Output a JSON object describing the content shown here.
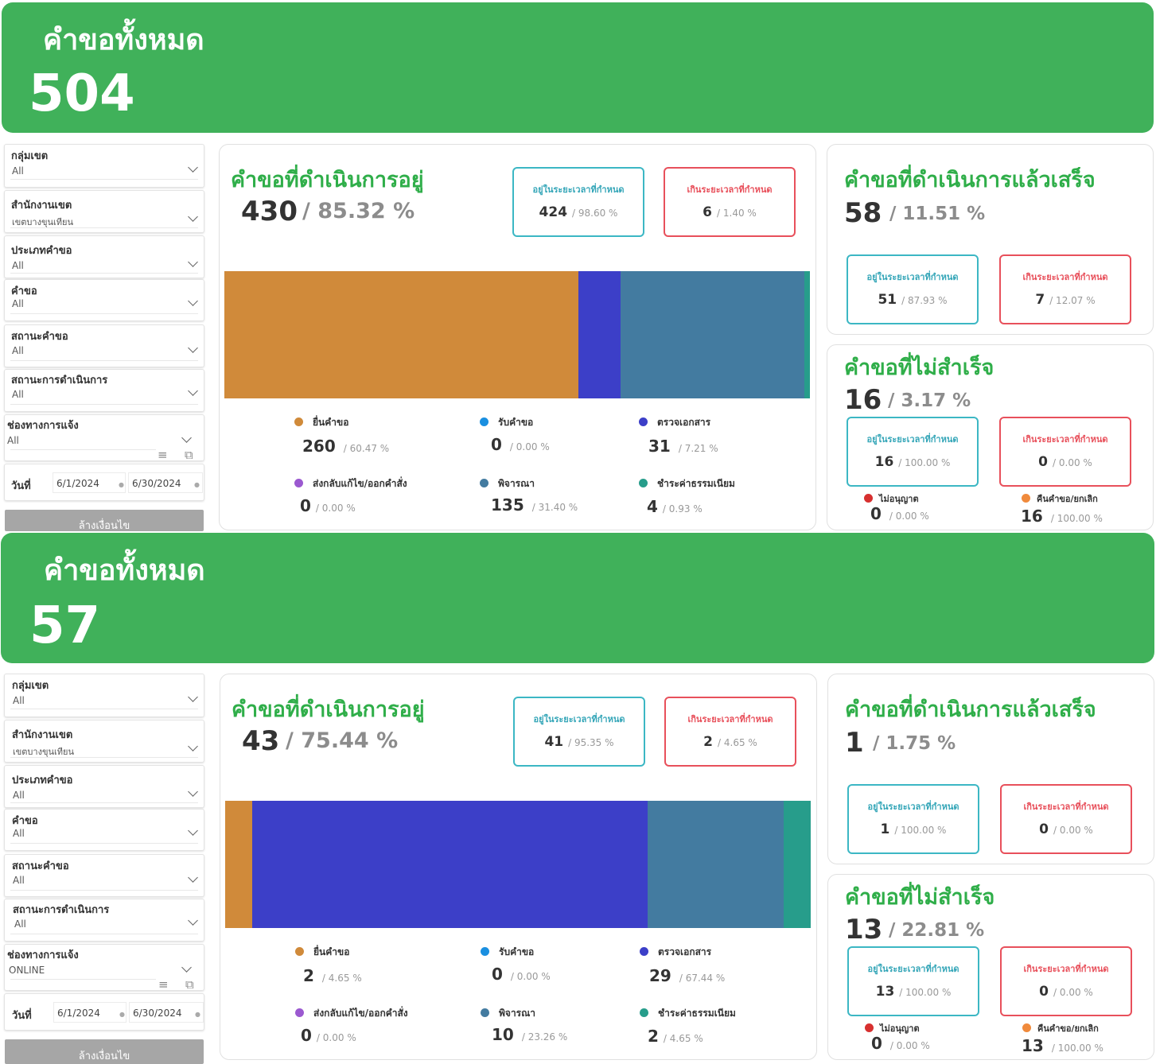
{
  "panels": [
    {
      "banner": {
        "title": "คำขอทั้งหมด",
        "value": "504"
      },
      "filters": [
        {
          "label": "กลุ่มเขต",
          "value": "All"
        },
        {
          "label": "สำนักงานเขต",
          "value": "เขตบางขุนเทียน"
        },
        {
          "label": "ประเภทคำขอ",
          "value": "All"
        },
        {
          "label": "คำขอ",
          "value": "All"
        },
        {
          "label": "สถานะคำขอ",
          "value": "All"
        },
        {
          "label": "สถานะการดำเนินการ",
          "value": "All"
        },
        {
          "label": "ช่องทางการแจ้ง",
          "value": "All"
        }
      ],
      "date": {
        "label": "วันที่",
        "from": "6/1/2024",
        "to": "6/30/2024"
      },
      "clear_label": "ล้างเงื่อนไข",
      "in_progress": {
        "title": "คำขอที่ดำเนินการอยู่",
        "count": "430",
        "pct": "/ 85.32 %",
        "in_time": {
          "title": "อยู่ในระยะเวลาที่กำหนด",
          "count": "424",
          "pct": "/ 98.60 %"
        },
        "over_time": {
          "title": "เกินระยะเวลาที่กำหนด",
          "count": "6",
          "pct": "/ 1.40 %"
        },
        "stack": [
          260,
          0,
          31,
          0,
          135,
          4
        ],
        "legend": [
          {
            "name": "ยื่นคำขอ",
            "count": "260",
            "pct": "/ 60.47 %"
          },
          {
            "name": "รับคำขอ",
            "count": "0",
            "pct": "/ 0.00 %"
          },
          {
            "name": "ตรวจเอกสาร",
            "count": "31",
            "pct": "/ 7.21 %"
          },
          {
            "name": "ส่งกลับแก้ไข/ออกคำสั่ง",
            "count": "0",
            "pct": "/ 0.00 %"
          },
          {
            "name": "พิจารณา",
            "count": "135",
            "pct": "/ 31.40 %"
          },
          {
            "name": "ชำระค่าธรรมเนียม",
            "count": "4",
            "pct": "/ 0.93 %"
          }
        ]
      },
      "completed": {
        "title": "คำขอที่ดำเนินการแล้วเสร็จ",
        "count": "58",
        "pct": "/ 11.51 %",
        "in_time": {
          "title": "อยู่ในระยะเวลาที่กำหนด",
          "count": "51",
          "pct": "/ 87.93 %"
        },
        "over_time": {
          "title": "เกินระยะเวลาที่กำหนด",
          "count": "7",
          "pct": "/ 12.07 %"
        }
      },
      "failed": {
        "title": "คำขอที่ไม่สำเร็จ",
        "count": "16",
        "pct": "/ 3.17 %",
        "in_time": {
          "title": "อยู่ในระยะเวลาที่กำหนด",
          "count": "16",
          "pct": "/ 100.00 %"
        },
        "over_time": {
          "title": "เกินระยะเวลาที่กำหนด",
          "count": "0",
          "pct": "/ 0.00 %"
        },
        "legend": [
          {
            "name": "ไม่อนุญาต",
            "count": "0",
            "pct": "/ 0.00 %"
          },
          {
            "name": "คืนคำขอ/ยกเลิก",
            "count": "16",
            "pct": "/ 100.00 %"
          }
        ]
      }
    },
    {
      "banner": {
        "title": "คำขอทั้งหมด",
        "value": "57"
      },
      "filters": [
        {
          "label": "กลุ่มเขต",
          "value": "All"
        },
        {
          "label": "สำนักงานเขต",
          "value": "เขตบางขุนเทียน"
        },
        {
          "label": "ประเภทคำขอ",
          "value": "All"
        },
        {
          "label": "คำขอ",
          "value": "All"
        },
        {
          "label": "สถานะคำขอ",
          "value": "All"
        },
        {
          "label": "สถานะการดำเนินการ",
          "value": "All"
        },
        {
          "label": "ช่องทางการแจ้ง",
          "value": "ONLINE"
        }
      ],
      "date": {
        "label": "วันที่",
        "from": "6/1/2024",
        "to": "6/30/2024"
      },
      "clear_label": "ล้างเงื่อนไข",
      "in_progress": {
        "title": "คำขอที่ดำเนินการอยู่",
        "count": "43",
        "pct": "/ 75.44 %",
        "in_time": {
          "title": "อยู่ในระยะเวลาที่กำหนด",
          "count": "41",
          "pct": "/ 95.35 %"
        },
        "over_time": {
          "title": "เกินระยะเวลาที่กำหนด",
          "count": "2",
          "pct": "/ 4.65 %"
        },
        "stack": [
          2,
          0,
          29,
          0,
          10,
          2
        ],
        "legend": [
          {
            "name": "ยื่นคำขอ",
            "count": "2",
            "pct": "/ 4.65 %"
          },
          {
            "name": "รับคำขอ",
            "count": "0",
            "pct": "/ 0.00 %"
          },
          {
            "name": "ตรวจเอกสาร",
            "count": "29",
            "pct": "/ 67.44 %"
          },
          {
            "name": "ส่งกลับแก้ไข/ออกคำสั่ง",
            "count": "0",
            "pct": "/ 0.00 %"
          },
          {
            "name": "พิจารณา",
            "count": "10",
            "pct": "/ 23.26 %"
          },
          {
            "name": "ชำระค่าธรรมเนียม",
            "count": "2",
            "pct": "/ 4.65 %"
          }
        ]
      },
      "completed": {
        "title": "คำขอที่ดำเนินการแล้วเสร็จ",
        "count": "1",
        "pct": "/ 1.75 %",
        "in_time": {
          "title": "อยู่ในระยะเวลาที่กำหนด",
          "count": "1",
          "pct": "/ 100.00 %"
        },
        "over_time": {
          "title": "เกินระยะเวลาที่กำหนด",
          "count": "0",
          "pct": "/ 0.00 %"
        }
      },
      "failed": {
        "title": "คำขอที่ไม่สำเร็จ",
        "count": "13",
        "pct": "/ 22.81 %",
        "in_time": {
          "title": "อยู่ในระยะเวลาที่กำหนด",
          "count": "13",
          "pct": "/ 100.00 %"
        },
        "over_time": {
          "title": "เกินระยะเวลาที่กำหนด",
          "count": "0",
          "pct": "/ 0.00 %"
        },
        "legend": [
          {
            "name": "ไม่อนุญาต",
            "count": "0",
            "pct": "/ 0.00 %"
          },
          {
            "name": "คืนคำขอ/ยกเลิก",
            "count": "13",
            "pct": "/ 100.00 %"
          }
        ]
      }
    }
  ],
  "colors": {
    "banner": "#40b15a",
    "stage_colors": [
      "#d08a3a",
      "#1a8fe0",
      "#3c3fc8",
      "#9b59d0",
      "#437ba0",
      "#279d8b"
    ],
    "failed_colors": [
      "#d7302f",
      "#f08a3c"
    ]
  }
}
